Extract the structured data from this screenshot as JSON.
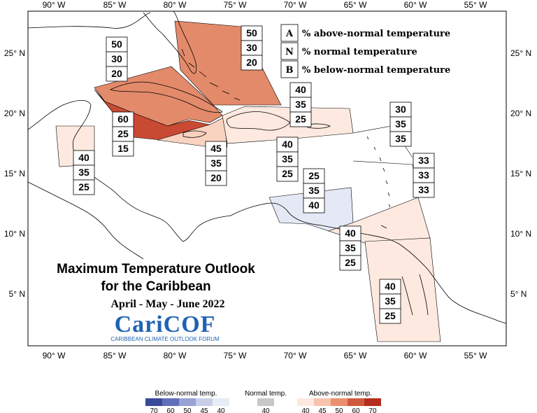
{
  "lon_labels": [
    "90° W",
    "85° W",
    "80° W",
    "75° W",
    "70° W",
    "65° W",
    "60° W",
    "55° W"
  ],
  "lat_labels": [
    "25° N",
    "20° N",
    "15° N",
    "10° N",
    "5° N"
  ],
  "key": {
    "a_letter": "A",
    "a_text": "% above-normal temperature",
    "n_letter": "N",
    "n_text": "% normal temperature",
    "b_letter": "B",
    "b_text": "% below-normal temperature"
  },
  "title": {
    "line1": "Maximum Temperature Outlook",
    "line2": "for the Caribbean",
    "period": "April - May - June 2022"
  },
  "logo": {
    "name": "CariCOF",
    "tagline": "CARIBBEAN CLIMATE OUTLOOK FORUM"
  },
  "regions": [
    {
      "id": "bahamas",
      "above": "50",
      "normal": "30",
      "below": "20"
    },
    {
      "id": "cuba",
      "above": "50",
      "normal": "30",
      "below": "20"
    },
    {
      "id": "cayman",
      "above": "60",
      "normal": "25",
      "below": "15"
    },
    {
      "id": "belize",
      "above": "40",
      "normal": "35",
      "below": "25"
    },
    {
      "id": "jamaica",
      "above": "45",
      "normal": "35",
      "below": "20"
    },
    {
      "id": "hispaniola",
      "above": "40",
      "normal": "35",
      "below": "25"
    },
    {
      "id": "hispaniola_south",
      "above": "40",
      "normal": "35",
      "below": "25"
    },
    {
      "id": "leewards",
      "above": "30",
      "normal": "35",
      "below": "35"
    },
    {
      "id": "windwards",
      "above": "33",
      "normal": "33",
      "below": "33"
    },
    {
      "id": "abc",
      "above": "25",
      "normal": "35",
      "below": "40"
    },
    {
      "id": "trinidad",
      "above": "40",
      "normal": "35",
      "below": "25"
    },
    {
      "id": "guianas",
      "above": "40",
      "normal": "35",
      "below": "25"
    }
  ],
  "colorbar": {
    "below_title": "Below-normal temp.",
    "below_ticks": [
      "70",
      "60",
      "50",
      "45",
      "40"
    ],
    "below_colors": [
      "#3a4a9a",
      "#6070b8",
      "#98a2d4",
      "#c8cde8",
      "#e8ecf6"
    ],
    "normal_title": "Normal temp.",
    "normal_ticks": [
      "40"
    ],
    "normal_color": "#c8c8c8",
    "above_title": "Above-normal temp.",
    "above_ticks": [
      "40",
      "45",
      "50",
      "60",
      "70"
    ],
    "above_colors": [
      "#fde9df",
      "#f7c3ad",
      "#eb8f6e",
      "#d05a3e",
      "#b52d20"
    ]
  },
  "colors": {
    "above_40": "#fde9df",
    "above_45": "#f9d2c0",
    "above_50": "#e38a6a",
    "above_60": "#c94a33",
    "below_40": "#e5e9f5",
    "coast": "#000000"
  }
}
